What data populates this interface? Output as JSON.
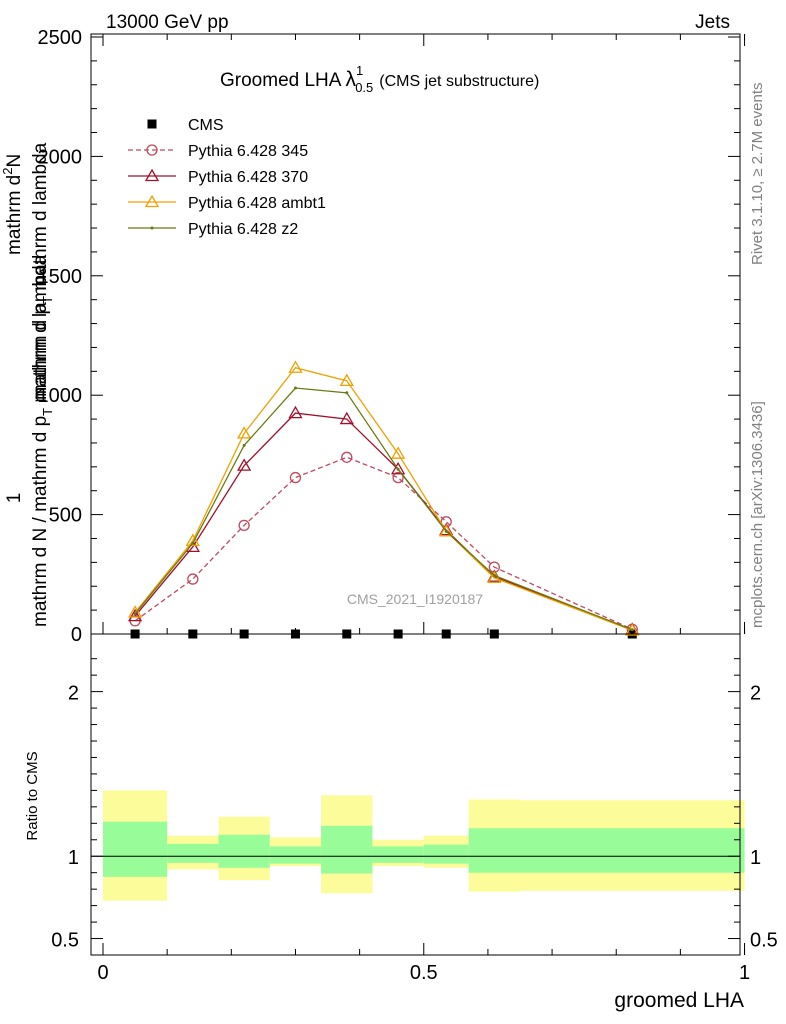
{
  "header": {
    "left": "13000 GeV pp",
    "right": "Jets"
  },
  "side_labels": {
    "rivet": "Rivet 3.1.10, ≥ 2.7M events",
    "mcplots": "mcplots.cern.ch [arXiv:1306.3436]"
  },
  "watermark": "CMS_2021_I1920187",
  "chart_data": [
    {
      "type": "line",
      "title": {
        "main": "Groomed LHA",
        "lambda": "λ",
        "sup": "1",
        "sub": "0.5",
        "note": "(CMS jet substructure)"
      },
      "ylabel": {
        "num": "1",
        "den": "mathrm d N / mathrm d p",
        "den_sub": "T",
        "den_tail": " mathrm d lambda",
        "top": "mathrm d",
        "top_sup": "2",
        "top_tail": "N",
        "top2": "mathrm d p",
        "top2_sub": "T",
        "top2_tail": " mathrm d lambda"
      },
      "xlim": [
        0,
        1
      ],
      "ylim": [
        0,
        2500
      ],
      "ytick_labels": [
        "0",
        "500",
        "1000",
        "1500",
        "2000",
        "2500"
      ],
      "bin_edges": [
        0,
        0.1,
        0.18,
        0.26,
        0.34,
        0.42,
        0.5,
        0.57,
        0.65,
        1.0
      ],
      "x": [
        0.05,
        0.14,
        0.22,
        0.3,
        0.38,
        0.46,
        0.535,
        0.61,
        0.825
      ],
      "legend": {
        "placement": "top-left"
      },
      "series": [
        {
          "name": "CMS",
          "color": "#000000",
          "marker": "square",
          "line": "none",
          "values": [
            0,
            0,
            0,
            0,
            0,
            0,
            0,
            0,
            0
          ]
        },
        {
          "name": "Pythia 6.428 345",
          "color": "#c2485e",
          "marker": "open-circle",
          "line": "dashed",
          "values": [
            55,
            230,
            455,
            655,
            740,
            655,
            470,
            280,
            20
          ]
        },
        {
          "name": "Pythia 6.428 370",
          "color": "#a0102a",
          "marker": "open-triangle",
          "line": "solid",
          "values": [
            75,
            365,
            705,
            925,
            900,
            690,
            435,
            240,
            18
          ]
        },
        {
          "name": "Pythia 6.428 ambt1",
          "color": "#f0a000",
          "marker": "open-triangle",
          "line": "solid",
          "values": [
            90,
            390,
            840,
            1115,
            1060,
            755,
            430,
            235,
            15
          ]
        },
        {
          "name": "Pythia 6.428 z2",
          "color": "#6b7a10",
          "marker": "dot",
          "line": "solid",
          "values": [
            85,
            380,
            790,
            1030,
            1010,
            690,
            430,
            245,
            18
          ]
        }
      ]
    },
    {
      "type": "bar",
      "ylabel": "Ratio to CMS",
      "xlabel": "groomed LHA",
      "xlim": [
        0,
        1
      ],
      "ylim": [
        0.4,
        2.35
      ],
      "ytick_labels": [
        "0.5",
        "1",
        "2"
      ],
      "xtick_labels": [
        "0",
        "0.5",
        "1"
      ],
      "bands": [
        {
          "x0": 0.0,
          "x1": 0.1,
          "inner": [
            0.875,
            1.21
          ],
          "outer": [
            0.73,
            1.4
          ]
        },
        {
          "x0": 0.1,
          "x1": 0.18,
          "inner": [
            0.96,
            1.075
          ],
          "outer": [
            0.92,
            1.125
          ]
        },
        {
          "x0": 0.18,
          "x1": 0.26,
          "inner": [
            0.93,
            1.13
          ],
          "outer": [
            0.855,
            1.24
          ]
        },
        {
          "x0": 0.26,
          "x1": 0.34,
          "inner": [
            0.955,
            1.06
          ],
          "outer": [
            0.94,
            1.115
          ]
        },
        {
          "x0": 0.34,
          "x1": 0.42,
          "inner": [
            0.895,
            1.185
          ],
          "outer": [
            0.775,
            1.37
          ]
        },
        {
          "x0": 0.42,
          "x1": 0.5,
          "inner": [
            0.96,
            1.06
          ],
          "outer": [
            0.94,
            1.1
          ]
        },
        {
          "x0": 0.5,
          "x1": 0.57,
          "inner": [
            0.955,
            1.07
          ],
          "outer": [
            0.93,
            1.125
          ]
        },
        {
          "x0": 0.57,
          "x1": 0.65,
          "inner": [
            0.9,
            1.17
          ],
          "outer": [
            0.785,
            1.345
          ]
        },
        {
          "x0": 0.65,
          "x1": 1.0,
          "inner": [
            0.9,
            1.17
          ],
          "outer": [
            0.79,
            1.34
          ]
        }
      ],
      "band_colors": {
        "inner": "#98fc98",
        "outer": "#fcfc9a"
      }
    }
  ]
}
